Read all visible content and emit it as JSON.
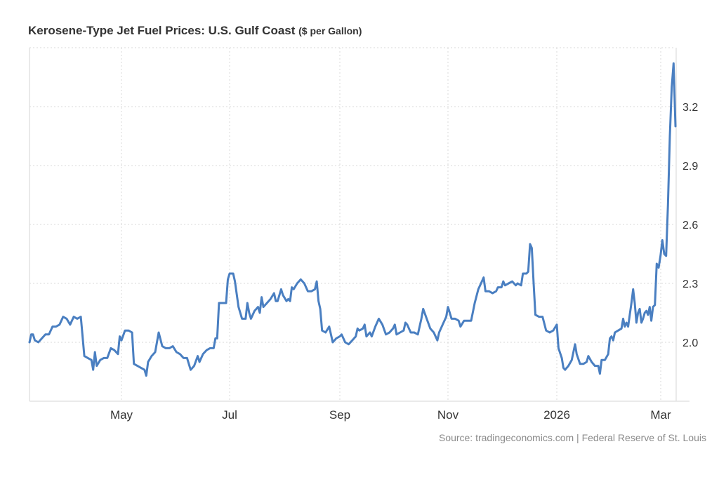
{
  "chart_data": {
    "type": "line",
    "title": "Kerosene-Type Jet Fuel Prices: U.S. Gulf Coast",
    "subtitle": "($ per Gallon)",
    "xlabel": "",
    "ylabel": "",
    "y_axis_position": "right",
    "ylim": [
      1.7,
      3.5
    ],
    "yticks": [
      2.0,
      2.3,
      2.6,
      2.9,
      3.2
    ],
    "ytick_labels": [
      "2.0",
      "2.3",
      "2.6",
      "2.9",
      "3.2"
    ],
    "xlim": [
      "2025-03-10",
      "2026-03-12"
    ],
    "xticks": [
      "2025-05-01",
      "2025-07-01",
      "2025-09-01",
      "2025-11-01",
      "2026-01-01",
      "2026-03-01"
    ],
    "xtick_labels": [
      "May",
      "Jul",
      "Sep",
      "Nov",
      "2026",
      "Mar"
    ],
    "grid": true,
    "legend": "none",
    "line_color": "#4a7fc1",
    "series": [
      {
        "name": "Jet Fuel Price",
        "points": [
          [
            "2025-03-10",
            2.0
          ],
          [
            "2025-03-11",
            2.04
          ],
          [
            "2025-03-12",
            2.04
          ],
          [
            "2025-03-13",
            2.01
          ],
          [
            "2025-03-15",
            2.0
          ],
          [
            "2025-03-17",
            2.02
          ],
          [
            "2025-03-19",
            2.04
          ],
          [
            "2025-03-21",
            2.04
          ],
          [
            "2025-03-23",
            2.08
          ],
          [
            "2025-03-25",
            2.08
          ],
          [
            "2025-03-27",
            2.09
          ],
          [
            "2025-03-29",
            2.13
          ],
          [
            "2025-03-31",
            2.12
          ],
          [
            "2025-04-02",
            2.09
          ],
          [
            "2025-04-04",
            2.13
          ],
          [
            "2025-04-06",
            2.12
          ],
          [
            "2025-04-08",
            2.13
          ],
          [
            "2025-04-10",
            1.93
          ],
          [
            "2025-04-12",
            1.92
          ],
          [
            "2025-04-14",
            1.91
          ],
          [
            "2025-04-15",
            1.86
          ],
          [
            "2025-04-16",
            1.95
          ],
          [
            "2025-04-17",
            1.88
          ],
          [
            "2025-04-19",
            1.91
          ],
          [
            "2025-04-21",
            1.92
          ],
          [
            "2025-04-23",
            1.92
          ],
          [
            "2025-04-25",
            1.97
          ],
          [
            "2025-04-27",
            1.96
          ],
          [
            "2025-04-29",
            1.94
          ],
          [
            "2025-04-30",
            2.03
          ],
          [
            "2025-05-01",
            2.01
          ],
          [
            "2025-05-03",
            2.06
          ],
          [
            "2025-05-05",
            2.06
          ],
          [
            "2025-05-07",
            2.05
          ],
          [
            "2025-05-08",
            1.89
          ],
          [
            "2025-05-10",
            1.88
          ],
          [
            "2025-05-12",
            1.87
          ],
          [
            "2025-05-14",
            1.86
          ],
          [
            "2025-05-15",
            1.83
          ],
          [
            "2025-05-16",
            1.9
          ],
          [
            "2025-05-18",
            1.93
          ],
          [
            "2025-05-20",
            1.95
          ],
          [
            "2025-05-22",
            2.05
          ],
          [
            "2025-05-24",
            1.98
          ],
          [
            "2025-05-26",
            1.97
          ],
          [
            "2025-05-28",
            1.97
          ],
          [
            "2025-05-30",
            1.98
          ],
          [
            "2025-06-01",
            1.95
          ],
          [
            "2025-06-03",
            1.94
          ],
          [
            "2025-06-05",
            1.92
          ],
          [
            "2025-06-07",
            1.92
          ],
          [
            "2025-06-09",
            1.86
          ],
          [
            "2025-06-11",
            1.88
          ],
          [
            "2025-06-13",
            1.93
          ],
          [
            "2025-06-14",
            1.9
          ],
          [
            "2025-06-16",
            1.94
          ],
          [
            "2025-06-18",
            1.96
          ],
          [
            "2025-06-20",
            1.97
          ],
          [
            "2025-06-22",
            1.97
          ],
          [
            "2025-06-23",
            2.02
          ],
          [
            "2025-06-24",
            2.02
          ],
          [
            "2025-06-25",
            2.2
          ],
          [
            "2025-06-27",
            2.2
          ],
          [
            "2025-06-29",
            2.2
          ],
          [
            "2025-06-30",
            2.32
          ],
          [
            "2025-07-01",
            2.35
          ],
          [
            "2025-07-03",
            2.35
          ],
          [
            "2025-07-04",
            2.31
          ],
          [
            "2025-07-06",
            2.18
          ],
          [
            "2025-07-08",
            2.12
          ],
          [
            "2025-07-10",
            2.12
          ],
          [
            "2025-07-11",
            2.2
          ],
          [
            "2025-07-12",
            2.15
          ],
          [
            "2025-07-13",
            2.12
          ],
          [
            "2025-07-15",
            2.16
          ],
          [
            "2025-07-17",
            2.18
          ],
          [
            "2025-07-18",
            2.15
          ],
          [
            "2025-07-19",
            2.23
          ],
          [
            "2025-07-20",
            2.18
          ],
          [
            "2025-07-22",
            2.2
          ],
          [
            "2025-07-24",
            2.22
          ],
          [
            "2025-07-26",
            2.25
          ],
          [
            "2025-07-27",
            2.21
          ],
          [
            "2025-07-28",
            2.21
          ],
          [
            "2025-07-30",
            2.27
          ],
          [
            "2025-07-31",
            2.24
          ],
          [
            "2025-08-02",
            2.21
          ],
          [
            "2025-08-03",
            2.22
          ],
          [
            "2025-08-04",
            2.21
          ],
          [
            "2025-08-05",
            2.28
          ],
          [
            "2025-08-06",
            2.27
          ],
          [
            "2025-08-08",
            2.3
          ],
          [
            "2025-08-10",
            2.32
          ],
          [
            "2025-08-12",
            2.3
          ],
          [
            "2025-08-14",
            2.26
          ],
          [
            "2025-08-16",
            2.26
          ],
          [
            "2025-08-18",
            2.27
          ],
          [
            "2025-08-19",
            2.31
          ],
          [
            "2025-08-20",
            2.21
          ],
          [
            "2025-08-21",
            2.17
          ],
          [
            "2025-08-22",
            2.06
          ],
          [
            "2025-08-24",
            2.05
          ],
          [
            "2025-08-26",
            2.08
          ],
          [
            "2025-08-28",
            2.0
          ],
          [
            "2025-08-30",
            2.02
          ],
          [
            "2025-09-01",
            2.03
          ],
          [
            "2025-09-02",
            2.04
          ],
          [
            "2025-09-04",
            2.0
          ],
          [
            "2025-09-06",
            1.99
          ],
          [
            "2025-09-08",
            2.01
          ],
          [
            "2025-09-10",
            2.03
          ],
          [
            "2025-09-11",
            2.07
          ],
          [
            "2025-09-12",
            2.06
          ],
          [
            "2025-09-14",
            2.07
          ],
          [
            "2025-09-15",
            2.09
          ],
          [
            "2025-09-16",
            2.03
          ],
          [
            "2025-09-18",
            2.05
          ],
          [
            "2025-09-19",
            2.03
          ],
          [
            "2025-09-21",
            2.08
          ],
          [
            "2025-09-23",
            2.12
          ],
          [
            "2025-09-25",
            2.09
          ],
          [
            "2025-09-27",
            2.04
          ],
          [
            "2025-09-29",
            2.05
          ],
          [
            "2025-10-01",
            2.07
          ],
          [
            "2025-10-02",
            2.09
          ],
          [
            "2025-10-03",
            2.04
          ],
          [
            "2025-10-05",
            2.05
          ],
          [
            "2025-10-07",
            2.06
          ],
          [
            "2025-10-08",
            2.1
          ],
          [
            "2025-10-09",
            2.09
          ],
          [
            "2025-10-11",
            2.05
          ],
          [
            "2025-10-13",
            2.05
          ],
          [
            "2025-10-15",
            2.04
          ],
          [
            "2025-10-17",
            2.12
          ],
          [
            "2025-10-18",
            2.17
          ],
          [
            "2025-10-20",
            2.12
          ],
          [
            "2025-10-22",
            2.07
          ],
          [
            "2025-10-24",
            2.05
          ],
          [
            "2025-10-26",
            2.01
          ],
          [
            "2025-10-27",
            2.05
          ],
          [
            "2025-10-29",
            2.09
          ],
          [
            "2025-10-31",
            2.13
          ],
          [
            "2025-11-01",
            2.18
          ],
          [
            "2025-11-03",
            2.12
          ],
          [
            "2025-11-05",
            2.12
          ],
          [
            "2025-11-07",
            2.11
          ],
          [
            "2025-11-08",
            2.08
          ],
          [
            "2025-11-10",
            2.11
          ],
          [
            "2025-11-12",
            2.11
          ],
          [
            "2025-11-14",
            2.11
          ],
          [
            "2025-11-16",
            2.2
          ],
          [
            "2025-11-18",
            2.27
          ],
          [
            "2025-11-20",
            2.31
          ],
          [
            "2025-11-21",
            2.33
          ],
          [
            "2025-11-22",
            2.26
          ],
          [
            "2025-11-24",
            2.26
          ],
          [
            "2025-11-26",
            2.25
          ],
          [
            "2025-11-28",
            2.26
          ],
          [
            "2025-11-29",
            2.28
          ],
          [
            "2025-12-01",
            2.28
          ],
          [
            "2025-12-02",
            2.31
          ],
          [
            "2025-12-03",
            2.29
          ],
          [
            "2025-12-05",
            2.3
          ],
          [
            "2025-12-07",
            2.31
          ],
          [
            "2025-12-09",
            2.29
          ],
          [
            "2025-12-10",
            2.3
          ],
          [
            "2025-12-12",
            2.29
          ],
          [
            "2025-12-13",
            2.35
          ],
          [
            "2025-12-15",
            2.35
          ],
          [
            "2025-12-16",
            2.36
          ],
          [
            "2025-12-17",
            2.5
          ],
          [
            "2025-12-18",
            2.48
          ],
          [
            "2025-12-19",
            2.3
          ],
          [
            "2025-12-20",
            2.14
          ],
          [
            "2025-12-22",
            2.13
          ],
          [
            "2025-12-24",
            2.13
          ],
          [
            "2025-12-26",
            2.06
          ],
          [
            "2025-12-28",
            2.05
          ],
          [
            "2025-12-30",
            2.06
          ],
          [
            "2026-01-01",
            2.09
          ]
        ]
      }
    ]
  },
  "source": "Source: tradingeconomics.com | Federal Reserve of St. Louis"
}
